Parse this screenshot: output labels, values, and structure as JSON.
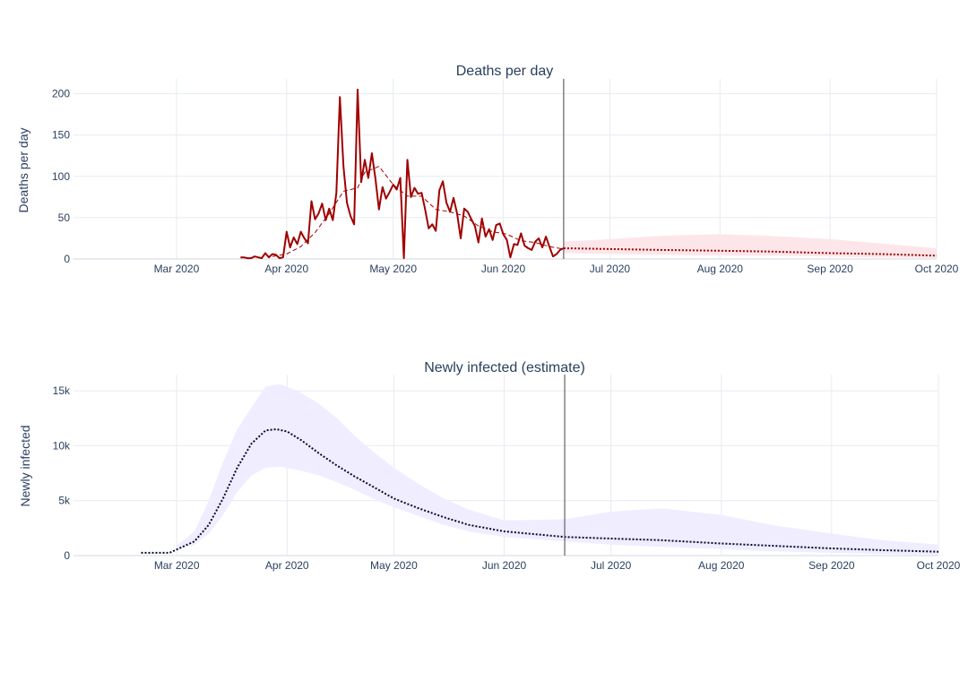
{
  "chart_data": [
    {
      "type": "line",
      "title": "Deaths per day",
      "xlabel": "",
      "ylabel": "Deaths per day",
      "xlim": [
        "2020-02-01",
        "2020-10-01"
      ],
      "ylim": [
        0,
        205
      ],
      "x_ticks": [
        "Mar 2020",
        "Apr 2020",
        "May 2020",
        "Jun 2020",
        "Jul 2020",
        "Aug 2020",
        "Sep 2020",
        "Oct 2020"
      ],
      "y_ticks": [
        0,
        50,
        100,
        150,
        200
      ],
      "grid": true,
      "legend": "none",
      "vline": "2020-06-18",
      "colors": {
        "observed": "#a00000",
        "band": "#fde6ea",
        "grid": "#e6ebf1"
      },
      "observed": [
        [
          "2020-03-19",
          2
        ],
        [
          "2020-03-20",
          2
        ],
        [
          "2020-03-21",
          1
        ],
        [
          "2020-03-22",
          1
        ],
        [
          "2020-03-23",
          3
        ],
        [
          "2020-03-24",
          2
        ],
        [
          "2020-03-25",
          1
        ],
        [
          "2020-03-26",
          7
        ],
        [
          "2020-03-27",
          2
        ],
        [
          "2020-03-28",
          6
        ],
        [
          "2020-03-29",
          5
        ],
        [
          "2020-03-30",
          1
        ],
        [
          "2020-03-31",
          2
        ],
        [
          "2020-04-01",
          33
        ],
        [
          "2020-04-02",
          14
        ],
        [
          "2020-04-03",
          26
        ],
        [
          "2020-04-04",
          18
        ],
        [
          "2020-04-05",
          33
        ],
        [
          "2020-04-06",
          25
        ],
        [
          "2020-04-07",
          19
        ],
        [
          "2020-04-08",
          70
        ],
        [
          "2020-04-09",
          48
        ],
        [
          "2020-04-10",
          55
        ],
        [
          "2020-04-11",
          67
        ],
        [
          "2020-04-12",
          47
        ],
        [
          "2020-04-13",
          61
        ],
        [
          "2020-04-14",
          47
        ],
        [
          "2020-04-15",
          80
        ],
        [
          "2020-04-16",
          196
        ],
        [
          "2020-04-17",
          112
        ],
        [
          "2020-04-18",
          68
        ],
        [
          "2020-04-19",
          52
        ],
        [
          "2020-04-20",
          42
        ],
        [
          "2020-04-21",
          205
        ],
        [
          "2020-04-22",
          93
        ],
        [
          "2020-04-23",
          120
        ],
        [
          "2020-04-24",
          98
        ],
        [
          "2020-04-25",
          128
        ],
        [
          "2020-04-26",
          97
        ],
        [
          "2020-04-27",
          60
        ],
        [
          "2020-04-28",
          87
        ],
        [
          "2020-04-29",
          73
        ],
        [
          "2020-04-30",
          81
        ],
        [
          "2020-05-01",
          90
        ],
        [
          "2020-05-02",
          84
        ],
        [
          "2020-05-03",
          98
        ],
        [
          "2020-05-04",
          1
        ],
        [
          "2020-05-05",
          120
        ],
        [
          "2020-05-06",
          75
        ],
        [
          "2020-05-07",
          86
        ],
        [
          "2020-05-08",
          79
        ],
        [
          "2020-05-09",
          80
        ],
        [
          "2020-05-10",
          60
        ],
        [
          "2020-05-11",
          37
        ],
        [
          "2020-05-12",
          42
        ],
        [
          "2020-05-13",
          34
        ],
        [
          "2020-05-14",
          83
        ],
        [
          "2020-05-15",
          94
        ],
        [
          "2020-05-16",
          68
        ],
        [
          "2020-05-17",
          57
        ],
        [
          "2020-05-18",
          74
        ],
        [
          "2020-05-19",
          55
        ],
        [
          "2020-05-20",
          25
        ],
        [
          "2020-05-21",
          61
        ],
        [
          "2020-05-22",
          57
        ],
        [
          "2020-05-23",
          48
        ],
        [
          "2020-05-24",
          40
        ],
        [
          "2020-05-25",
          20
        ],
        [
          "2020-05-26",
          49
        ],
        [
          "2020-05-27",
          27
        ],
        [
          "2020-05-28",
          36
        ],
        [
          "2020-05-29",
          23
        ],
        [
          "2020-05-30",
          41
        ],
        [
          "2020-05-31",
          43
        ],
        [
          "2020-06-01",
          30
        ],
        [
          "2020-06-02",
          23
        ],
        [
          "2020-06-03",
          2
        ],
        [
          "2020-06-04",
          18
        ],
        [
          "2020-06-05",
          17
        ],
        [
          "2020-06-06",
          31
        ],
        [
          "2020-06-07",
          16
        ],
        [
          "2020-06-08",
          13
        ],
        [
          "2020-06-09",
          11
        ],
        [
          "2020-06-10",
          21
        ],
        [
          "2020-06-11",
          25
        ],
        [
          "2020-06-12",
          14
        ],
        [
          "2020-06-13",
          27
        ],
        [
          "2020-06-14",
          15
        ],
        [
          "2020-06-15",
          3
        ],
        [
          "2020-06-16",
          6
        ],
        [
          "2020-06-17",
          11
        ],
        [
          "2020-06-18",
          13
        ]
      ],
      "average": [
        [
          "2020-03-28",
          3
        ],
        [
          "2020-04-01",
          6
        ],
        [
          "2020-04-05",
          15
        ],
        [
          "2020-04-09",
          32
        ],
        [
          "2020-04-13",
          55
        ],
        [
          "2020-04-17",
          82
        ],
        [
          "2020-04-21",
          86
        ],
        [
          "2020-04-23",
          105
        ],
        [
          "2020-04-27",
          112
        ],
        [
          "2020-05-01",
          90
        ],
        [
          "2020-05-05",
          76
        ],
        [
          "2020-05-09",
          76
        ],
        [
          "2020-05-13",
          60
        ],
        [
          "2020-05-17",
          57
        ],
        [
          "2020-05-21",
          52
        ],
        [
          "2020-05-25",
          40
        ],
        [
          "2020-05-29",
          33
        ],
        [
          "2020-06-02",
          30
        ],
        [
          "2020-06-06",
          22
        ],
        [
          "2020-06-10",
          20
        ],
        [
          "2020-06-14",
          15
        ],
        [
          "2020-06-18",
          12
        ]
      ],
      "forecast": [
        [
          "2020-06-18",
          13
        ],
        [
          "2020-07-01",
          12
        ],
        [
          "2020-07-15",
          11
        ],
        [
          "2020-08-01",
          10
        ],
        [
          "2020-08-15",
          9
        ],
        [
          "2020-09-01",
          7
        ],
        [
          "2020-09-15",
          6
        ],
        [
          "2020-10-01",
          4
        ]
      ],
      "forecast_band": [
        [
          "2020-06-18",
          7,
          21
        ],
        [
          "2020-07-01",
          6,
          24
        ],
        [
          "2020-07-15",
          5,
          28
        ],
        [
          "2020-08-01",
          4,
          30
        ],
        [
          "2020-08-15",
          4,
          28
        ],
        [
          "2020-09-01",
          3,
          24
        ],
        [
          "2020-09-15",
          2,
          19
        ],
        [
          "2020-10-01",
          1,
          13
        ]
      ]
    },
    {
      "type": "line",
      "title": "Newly infected (estimate)",
      "xlabel": "",
      "ylabel": "Newly infected",
      "xlim": [
        "2020-02-01",
        "2020-10-01"
      ],
      "ylim": [
        0,
        15500
      ],
      "x_ticks": [
        "Mar 2020",
        "Apr 2020",
        "May 2020",
        "Jun 2020",
        "Jul 2020",
        "Aug 2020",
        "Sep 2020",
        "Oct 2020"
      ],
      "y_ticks": [
        0,
        5000,
        10000,
        15000
      ],
      "y_tick_labels": [
        "0",
        "5k",
        "10k",
        "15k"
      ],
      "grid": true,
      "legend": "none",
      "vline": "2020-06-18",
      "colors": {
        "estimate": "#0a0a2a",
        "band": "#efedff",
        "grid": "#e6ebf1"
      },
      "estimate": [
        [
          "2020-02-20",
          250
        ],
        [
          "2020-02-28",
          250
        ],
        [
          "2020-03-02",
          700
        ],
        [
          "2020-03-06",
          1300
        ],
        [
          "2020-03-10",
          2800
        ],
        [
          "2020-03-14",
          5200
        ],
        [
          "2020-03-18",
          8000
        ],
        [
          "2020-03-22",
          10200
        ],
        [
          "2020-03-26",
          11400
        ],
        [
          "2020-03-29",
          11500
        ],
        [
          "2020-04-01",
          11300
        ],
        [
          "2020-04-05",
          10500
        ],
        [
          "2020-04-10",
          9300
        ],
        [
          "2020-04-15",
          8200
        ],
        [
          "2020-04-20",
          7200
        ],
        [
          "2020-04-25",
          6300
        ],
        [
          "2020-05-01",
          5200
        ],
        [
          "2020-05-08",
          4300
        ],
        [
          "2020-05-15",
          3500
        ],
        [
          "2020-05-22",
          2800
        ],
        [
          "2020-06-01",
          2200
        ],
        [
          "2020-06-18",
          1700
        ],
        [
          "2020-07-01",
          1550
        ],
        [
          "2020-07-15",
          1400
        ],
        [
          "2020-08-01",
          1100
        ],
        [
          "2020-08-15",
          900
        ],
        [
          "2020-09-01",
          650
        ],
        [
          "2020-09-15",
          500
        ],
        [
          "2020-10-01",
          350
        ]
      ],
      "band": [
        [
          "2020-03-01",
          500,
          900
        ],
        [
          "2020-03-06",
          1000,
          2200
        ],
        [
          "2020-03-10",
          2000,
          5000
        ],
        [
          "2020-03-14",
          3700,
          8500
        ],
        [
          "2020-03-18",
          5800,
          11500
        ],
        [
          "2020-03-22",
          7300,
          13500
        ],
        [
          "2020-03-26",
          8000,
          15400
        ],
        [
          "2020-03-30",
          8100,
          15600
        ],
        [
          "2020-04-04",
          7800,
          15000
        ],
        [
          "2020-04-10",
          7300,
          13800
        ],
        [
          "2020-04-15",
          6700,
          12500
        ],
        [
          "2020-04-20",
          6000,
          10900
        ],
        [
          "2020-04-25",
          5200,
          9500
        ],
        [
          "2020-05-01",
          4400,
          8000
        ],
        [
          "2020-05-08",
          3600,
          6500
        ],
        [
          "2020-05-15",
          2800,
          5200
        ],
        [
          "2020-05-22",
          2200,
          4200
        ],
        [
          "2020-06-01",
          1700,
          3200
        ],
        [
          "2020-06-18",
          1300,
          3300
        ],
        [
          "2020-07-01",
          1000,
          4000
        ],
        [
          "2020-07-15",
          800,
          4300
        ],
        [
          "2020-08-01",
          600,
          3700
        ],
        [
          "2020-08-15",
          400,
          2800
        ],
        [
          "2020-09-01",
          250,
          2000
        ],
        [
          "2020-09-15",
          150,
          1400
        ],
        [
          "2020-10-01",
          100,
          1000
        ]
      ]
    }
  ]
}
